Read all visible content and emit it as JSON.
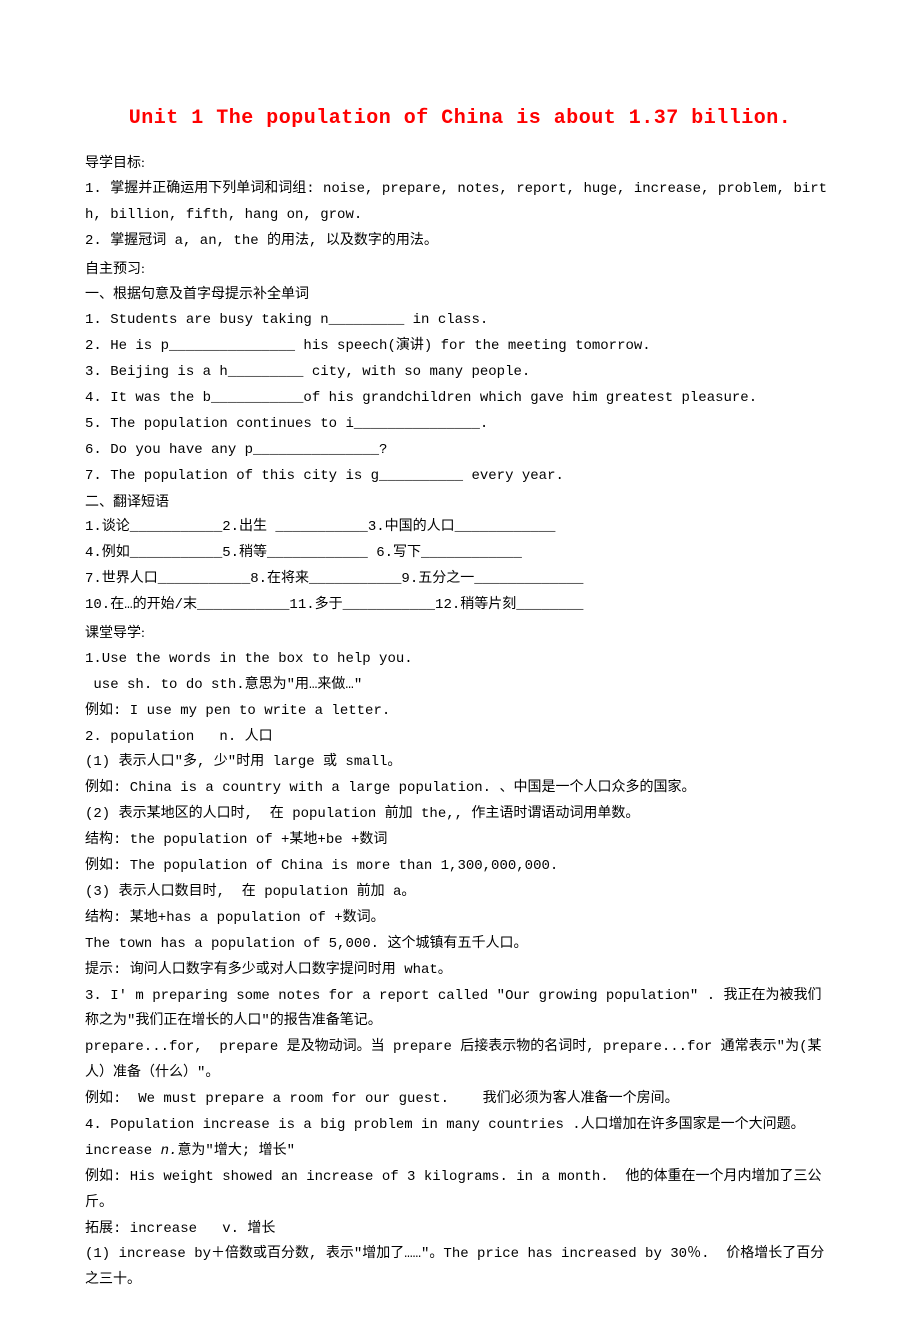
{
  "title": "Unit 1 The population of China is about 1.37 billion.",
  "sections": {
    "goals_label": "导学目标:",
    "goal1": "1. 掌握并正确运用下列单词和词组: noise, prepare, notes, report, huge, increase, problem, birth, billion, fifth, hang on, grow.",
    "goal2": "2. 掌握冠词 a, an, the 的用法, 以及数字的用法。",
    "preview_label": "自主预习:",
    "ex1_label": "一、根据句意及首字母提示补全单词",
    "ex1_1": "1. Students are busy taking n_________ in class.",
    "ex1_2": "2. He is p_______________ his speech(演讲) for the meeting tomorrow.",
    "ex1_3": "3. Beijing is a h_________ city, with so many people.",
    "ex1_4": "4. It was the b___________of his grandchildren which gave him greatest pleasure.",
    "ex1_5": "5. The population continues to i_______________.",
    "ex1_6": "6. Do you have any p_______________?",
    "ex1_7": "7. The population of this city is g__________ every year.",
    "ex2_label": "二、翻译短语",
    "ex2_l1": "1.谈论___________2.出生 ___________3.中国的人口____________",
    "ex2_l2": "4.例如___________5.稍等____________ 6.写下____________",
    "ex2_l3": "7.世界人口___________8.在将来___________9.五分之一_____________",
    "ex2_l4": "10.在…的开始/末___________11.多于___________12.稍等片刻________",
    "class_label": "课堂导学:",
    "c1_a": "1.Use the words in the box to help you.",
    "c1_b": " use sh. to do sth.意思为\"用…来做…\"",
    "c1_c": "例如: I use my pen to write a letter.",
    "c2_a": "2. population   n. 人口",
    "c2_b": "(1) 表示人口\"多, 少\"时用 large 或 small。",
    "c2_c": "例如: China is a country with a large population. 、中国是一个人口众多的国家。",
    "c2_d": "(2) 表示某地区的人口时,  在 population 前加 the,, 作主语时谓语动词用单数。",
    "c2_e": "结构: the population of +某地+be +数词",
    "c2_f": "例如: The population of China is more than 1,300,000,000.",
    "c2_g": "(3) 表示人口数目时,  在 population 前加 a。",
    "c2_h": "结构: 某地+has a population of +数词。",
    "c2_i": "The town has a population of 5,000. 这个城镇有五千人口。",
    "c2_j": "提示: 询问人口数字有多少或对人口数字提问时用 what。",
    "c3_a": "3. I' m preparing some notes for a report called \"Our growing population\" . 我正在为被我们称之为\"我们正在增长的人口\"的报告准备笔记。",
    "c3_b": "prepare...for,  prepare 是及物动词。当 prepare 后接表示物的名词时, prepare...for 通常表示\"为(某人）准备（什么）\"。",
    "c3_c": "例如:  We must prepare a room for our guest.    我们必须为客人准备一个房间。",
    "c4_a": "4. Population increase is a big problem in many countries .人口增加在许多国家是一个大问题。",
    "c4_b_pre": "increase ",
    "c4_b_italic": "n.",
    "c4_b_post": "意为\"增大; 增长\"",
    "c4_c": "例如: His weight showed an increase of 3 kilograms. in a month.  他的体重在一个月内增加了三公斤。",
    "c4_d": "拓展: increase   v. 增长",
    "c4_e": "(1) increase by＋倍数或百分数, 表示\"增加了……\"。The price has increased by 30％.  价格增长了百分之三十。"
  }
}
